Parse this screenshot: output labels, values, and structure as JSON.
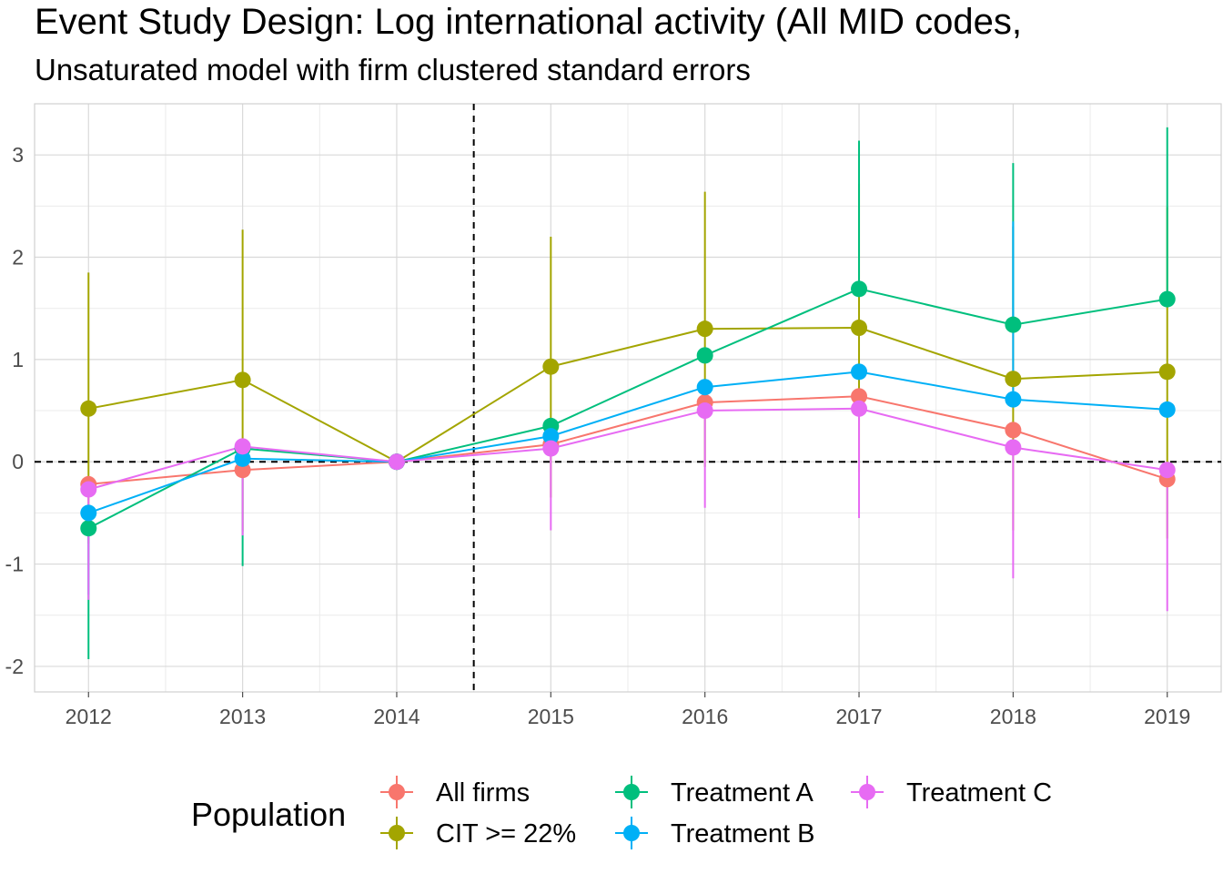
{
  "chart_data": {
    "type": "line",
    "title": "Event Study Design: Log international activity (All MID codes,",
    "subtitle": "Unsaturated model with firm clustered standard errors",
    "x": [
      2012,
      2013,
      2014,
      2015,
      2016,
      2017,
      2018,
      2019
    ],
    "xlim": [
      2011.65,
      2019.35
    ],
    "ylim": [
      -2.25,
      3.5
    ],
    "y_ticks": [
      -2,
      -1,
      0,
      1,
      2,
      3
    ],
    "grid": true,
    "reference_lines": {
      "horizontal_y": 0,
      "vertical_x": 2014.5,
      "style": "dashed"
    },
    "legend": {
      "title": "Population",
      "position": "bottom"
    },
    "series": [
      {
        "name": "All firms",
        "color": "#F8766D",
        "values": [
          -0.22,
          -0.08,
          0.0,
          0.17,
          0.58,
          0.64,
          0.31,
          -0.17
        ],
        "lower": [
          null,
          null,
          0.0,
          null,
          null,
          null,
          null,
          null
        ],
        "upper": [
          null,
          null,
          0.0,
          null,
          null,
          null,
          null,
          null
        ]
      },
      {
        "name": "CIT >= 22%",
        "color": "#A3A500",
        "values": [
          0.52,
          0.8,
          0.0,
          0.93,
          1.3,
          1.31,
          0.81,
          0.88
        ],
        "lower": [
          -0.8,
          -0.68,
          0.0,
          -0.35,
          -0.05,
          -0.1,
          -0.67,
          -0.75
        ],
        "upper": [
          1.85,
          2.27,
          0.0,
          2.2,
          2.64,
          2.72,
          2.3,
          2.49
        ]
      },
      {
        "name": "Treatment A",
        "color": "#00BF7D",
        "values": [
          -0.65,
          0.13,
          0.0,
          0.35,
          1.04,
          1.69,
          1.34,
          1.59
        ],
        "lower": [
          -1.93,
          -1.02,
          0.0,
          null,
          null,
          null,
          null,
          null
        ],
        "upper": [
          null,
          null,
          0.0,
          null,
          null,
          3.14,
          2.92,
          3.27
        ]
      },
      {
        "name": "Treatment B",
        "color": "#00B0F6",
        "values": [
          -0.5,
          0.03,
          0.0,
          0.25,
          0.73,
          0.88,
          0.61,
          0.51
        ],
        "lower": [
          -1.3,
          null,
          0.0,
          null,
          null,
          null,
          null,
          null
        ],
        "upper": [
          null,
          null,
          0.0,
          null,
          null,
          null,
          2.35,
          null
        ]
      },
      {
        "name": "Treatment C",
        "color": "#E76BF3",
        "values": [
          -0.27,
          0.15,
          0.0,
          0.13,
          0.5,
          0.52,
          0.14,
          -0.08
        ],
        "lower": [
          -1.35,
          -0.72,
          0.0,
          -0.67,
          -0.45,
          -0.55,
          -1.14,
          -1.46
        ],
        "upper": [
          null,
          null,
          0.0,
          null,
          null,
          null,
          null,
          null
        ]
      }
    ]
  }
}
